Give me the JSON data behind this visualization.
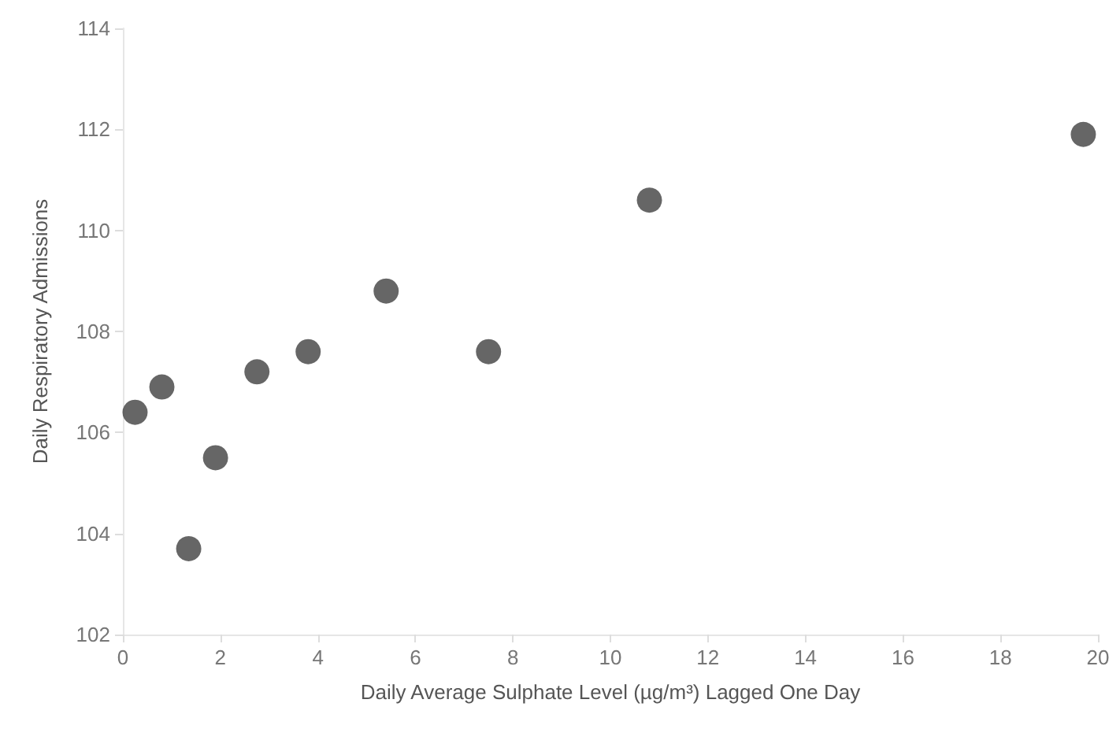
{
  "chart_data": {
    "type": "scatter",
    "xlabel": "Daily Average Sulphate Level (µg/m³) Lagged One Day",
    "ylabel": "Daily Respiratory Admissions",
    "x": [
      0.25,
      0.8,
      1.35,
      1.9,
      2.75,
      3.8,
      5.4,
      7.5,
      10.8,
      19.7
    ],
    "series": [
      {
        "color": "#404040",
        "values": [
          106.4,
          106.9,
          103.7,
          105.5,
          107.2,
          107.6,
          108.8,
          107.6,
          110.6,
          111.9
        ]
      }
    ],
    "xlim": [
      0,
      20
    ],
    "xticks": [
      0,
      2,
      4,
      6,
      8,
      10,
      12,
      14,
      16,
      18,
      20
    ],
    "ylim": [
      102,
      114
    ],
    "yticks": [
      102,
      104,
      106,
      108,
      110,
      112,
      114
    ],
    "marker": "circle",
    "grid": false
  }
}
